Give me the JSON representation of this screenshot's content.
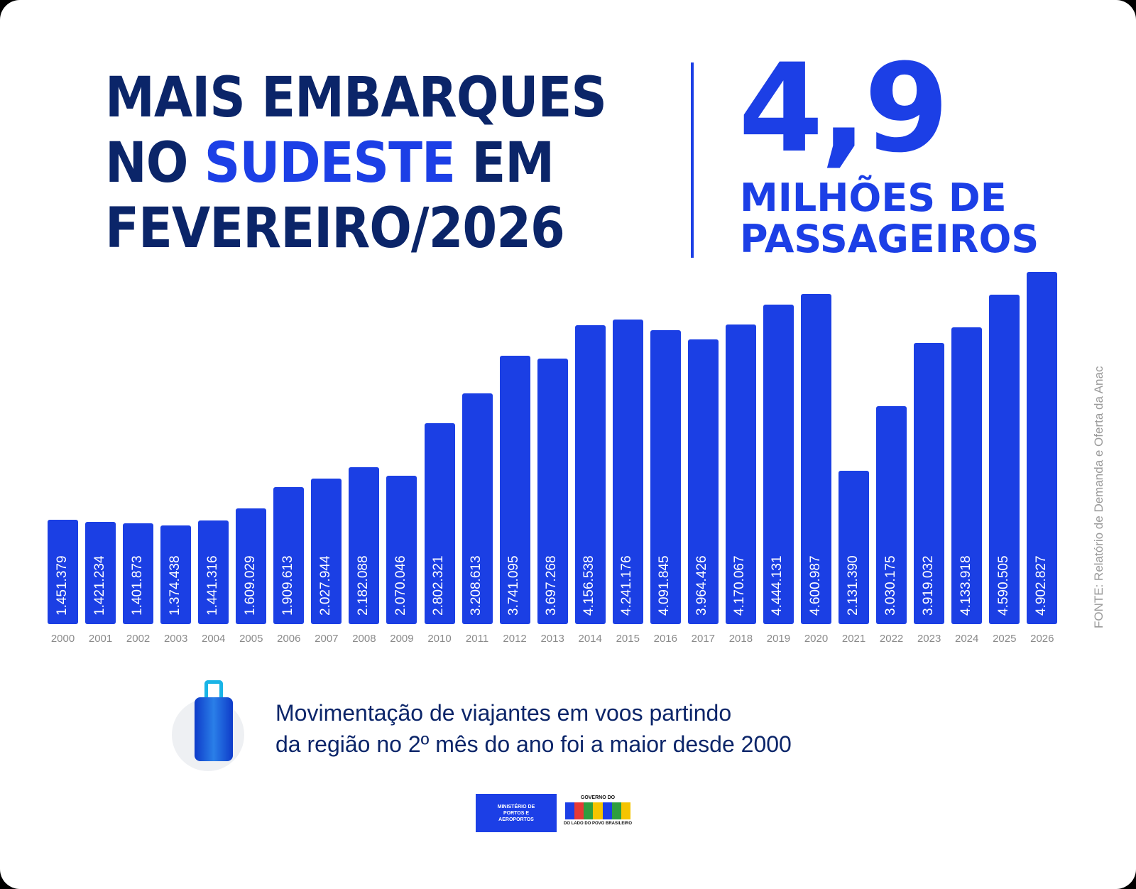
{
  "header": {
    "line1": "MAIS EMBARQUES",
    "line2_pre": "NO ",
    "line2_hl": "SUDESTE",
    "line2_post": " EM",
    "line3": "FEVEREIRO/2026"
  },
  "highlight": {
    "value": "4,9",
    "line1": "MILHÕES DE",
    "line2": "PASSAGEIROS"
  },
  "chart_data": {
    "type": "bar",
    "title": "Mais embarques no Sudeste em fevereiro/2026",
    "categories": [
      "2000",
      "2001",
      "2002",
      "2003",
      "2004",
      "2005",
      "2006",
      "2007",
      "2008",
      "2009",
      "2010",
      "2011",
      "2012",
      "2013",
      "2014",
      "2015",
      "2016",
      "2017",
      "2018",
      "2019",
      "2020",
      "2021",
      "2022",
      "2023",
      "2024",
      "2025",
      "2026"
    ],
    "values": [
      1451379,
      1421234,
      1401873,
      1374438,
      1441316,
      1609029,
      1909613,
      2027944,
      2182088,
      2070046,
      2802321,
      3208613,
      3741095,
      3697268,
      4156538,
      4241176,
      4091845,
      3964426,
      4170067,
      4444131,
      4600987,
      2131390,
      3030175,
      3919032,
      4133918,
      4590505,
      4902827
    ],
    "labels": [
      "1.451.379",
      "1.421.234",
      "1.401.873",
      "1.374.438",
      "1.441.316",
      "1.609.029",
      "1.909.613",
      "2.027.944",
      "2.182.088",
      "2.070.046",
      "2.802.321",
      "3.208.613",
      "3.741.095",
      "3.697.268",
      "4.156.538",
      "4.241.176",
      "4.091.845",
      "3.964.426",
      "4.170.067",
      "4.444.131",
      "4.600.987",
      "2.131.390",
      "3.030.175",
      "3.919.032",
      "4.133.918",
      "4.590.505",
      "4.902.827"
    ],
    "xlabel": "",
    "ylabel": "",
    "ylim": [
      0,
      5000000
    ],
    "grid": false,
    "color": "#1b3fe4"
  },
  "source": "FONTE: Relatório de Demanda e Oferta da Anac",
  "caption": {
    "line1": "Movimentação de viajantes em voos partindo",
    "line2": "da região no 2º mês do ano foi a maior desde 2000"
  },
  "footer": {
    "ministry": [
      "MINISTÉRIO DE",
      "PORTOS E",
      "AEROPORTOS"
    ],
    "gov_top": "GOVERNO DO",
    "gov_logo": "BRASIL",
    "gov_bottom": "DO LADO DO POVO BRASILEIRO"
  }
}
